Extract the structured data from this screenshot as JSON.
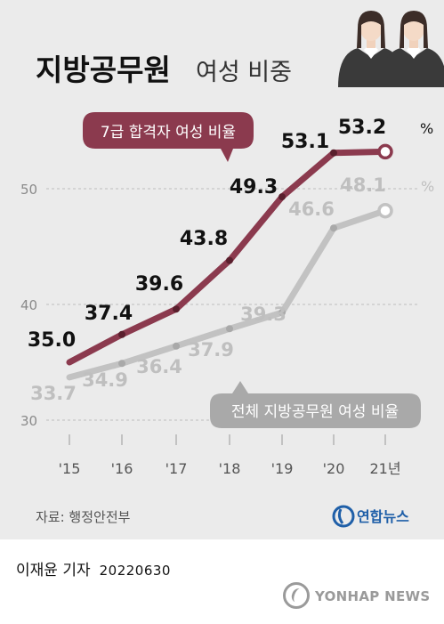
{
  "title_main": "지방공무원",
  "title_sub": "여성 비중",
  "source": "자료: 행정안전부",
  "brand": "연합뉴스",
  "byline_name": "이재윤 기자",
  "byline_date": "20220630",
  "watermark": "YONHAP NEWS",
  "colors": {
    "series_7th": "#8b3a4e",
    "series_all": "#c2c2c2",
    "label_all": "#a9a9a9",
    "background": "#ebebeb",
    "brand_blue": "#1f5fa8"
  },
  "icons": [
    "woman-figure-icon",
    "woman-figure-icon",
    "yonhap-logo-icon",
    "yonhap-watermark-icon"
  ],
  "chart_data": {
    "type": "line",
    "categories": [
      "'15",
      "'16",
      "'17",
      "'18",
      "'19",
      "'20",
      "21년"
    ],
    "yticks": [
      "30",
      "40",
      "50"
    ],
    "ylim": [
      30,
      55
    ],
    "unit": "%",
    "grid": true,
    "series": [
      {
        "name": "7급 합격자 여성 비율",
        "values": [
          35.0,
          37.4,
          39.6,
          43.8,
          49.3,
          53.1,
          53.2
        ],
        "labels": [
          "35.0",
          "37.4",
          "39.6",
          "43.8",
          "49.3",
          "53.1",
          "53.2"
        ]
      },
      {
        "name": "전체 지방공무원 여성 비율",
        "values": [
          33.7,
          34.9,
          36.4,
          37.9,
          39.3,
          46.6,
          48.1
        ],
        "labels": [
          "33.7",
          "34.9",
          "36.4",
          "37.9",
          "39.3",
          "46.6",
          "48.1"
        ]
      }
    ]
  }
}
